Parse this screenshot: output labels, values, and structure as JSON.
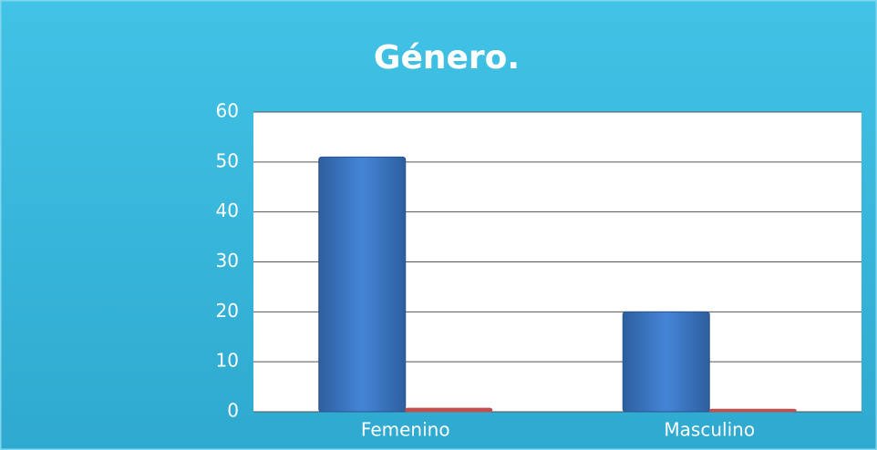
{
  "chart_data": {
    "type": "bar",
    "title": "Género.",
    "categories": [
      "Femenino",
      "Masculino"
    ],
    "series": [
      {
        "color": "#3f7fd6",
        "values": [
          51,
          20
        ]
      },
      {
        "color": "#c0504d",
        "values": [
          0.7,
          0.5
        ]
      }
    ],
    "ylim": [
      0,
      60
    ],
    "yticks": [
      0,
      10,
      20,
      30,
      40,
      50,
      60
    ],
    "grid": true
  }
}
